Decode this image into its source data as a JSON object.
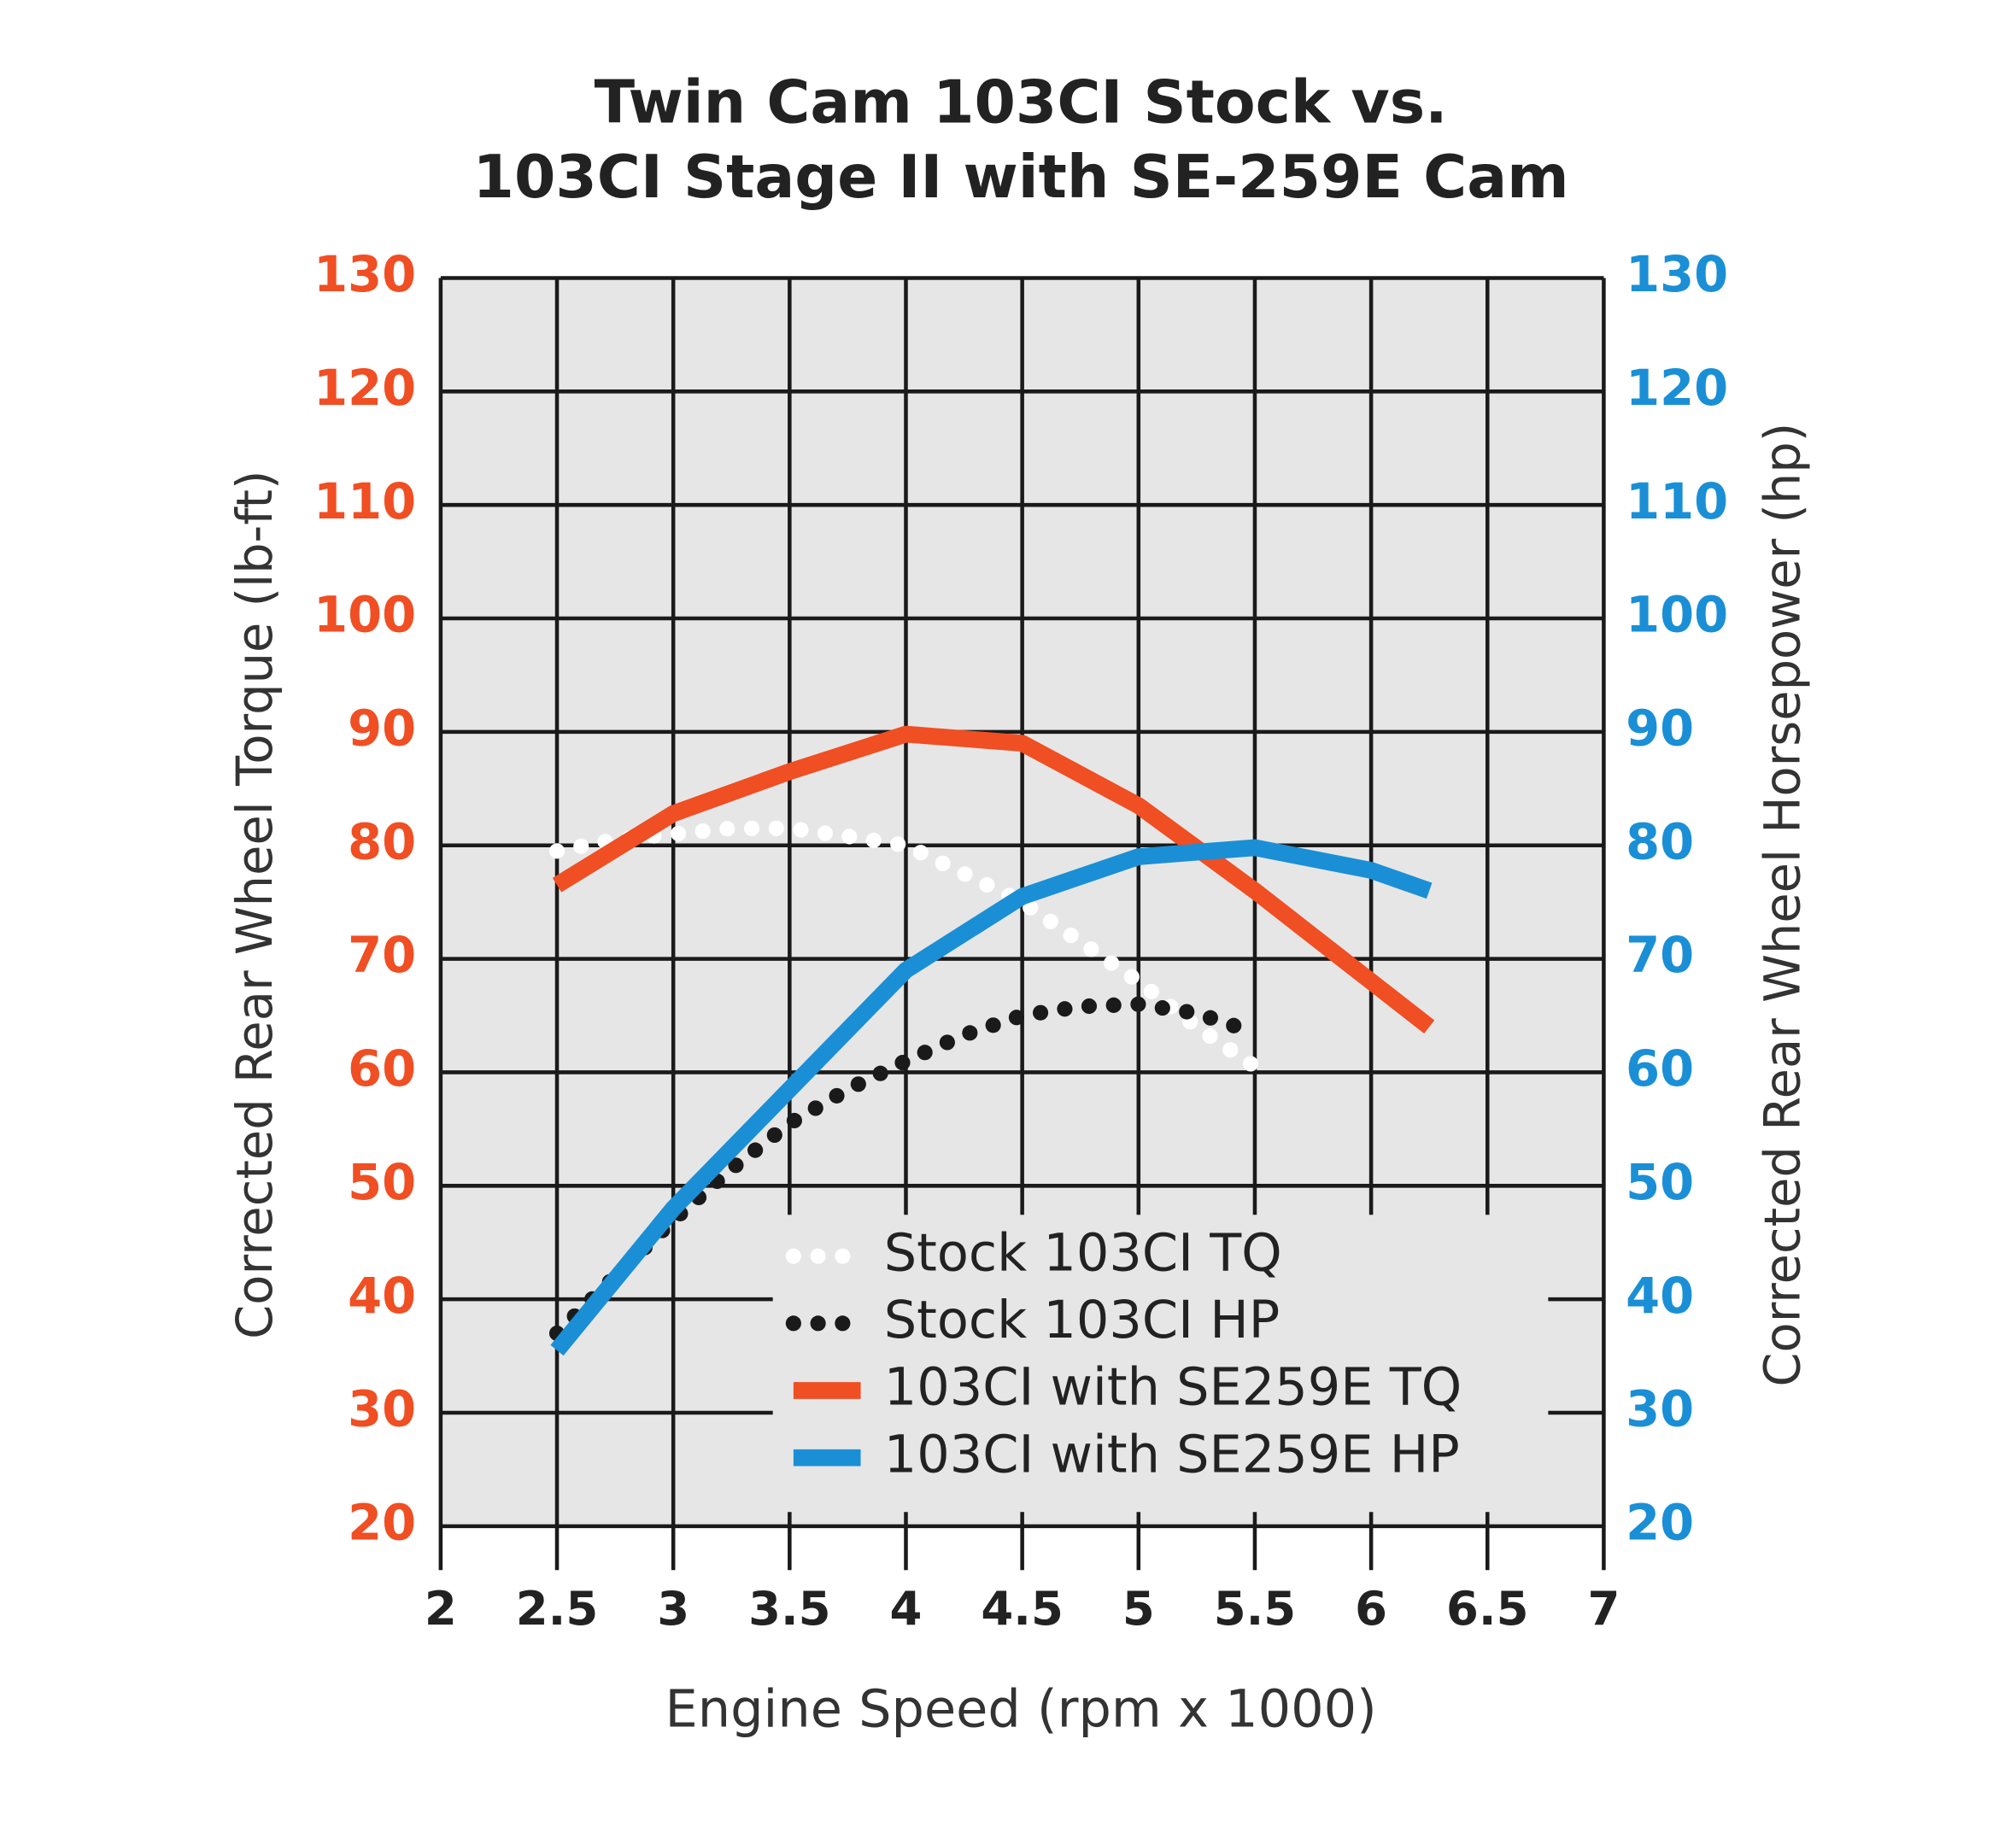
{
  "chart_data": {
    "type": "line",
    "title": "Twin Cam 103CI Stock vs.",
    "subtitle": "103CI Stage II with SE-259E Cam",
    "x_label": "Engine Speed (rpm x 1000)",
    "y_label": "Corrected Rear Wheel Torque (lb-ft)",
    "y2_label": "Corrected Rear Wheel Horsepower (hp)",
    "xlim": [
      2,
      7
    ],
    "xticks": [
      2,
      2.5,
      3,
      3.5,
      4,
      4.5,
      5,
      5.5,
      6,
      6.5,
      7
    ],
    "ylim": [
      20,
      130
    ],
    "yticks": [
      20,
      30,
      40,
      50,
      60,
      70,
      80,
      90,
      100,
      110,
      120,
      130
    ],
    "y2lim": [
      20,
      130
    ],
    "y2ticks": [
      20,
      30,
      40,
      50,
      60,
      70,
      80,
      90,
      100,
      110,
      120,
      130
    ],
    "y_color": "#f04e23",
    "y2_color": "#1a8fd6",
    "grid": true,
    "legend": "lower right",
    "series": [
      {
        "name": "Stock 103CI TQ",
        "color": "#ffffff",
        "style": "dotted",
        "x": [
          2.5,
          2.75,
          3,
          3.25,
          3.5,
          3.75,
          4,
          4.25,
          4.5,
          4.75,
          5,
          5.25,
          5.5
        ],
        "values": [
          79.5,
          80.5,
          81,
          81.5,
          81.5,
          80.8,
          80,
          77.5,
          75,
          71.5,
          68,
          64,
          60.5
        ]
      },
      {
        "name": "Stock 103CI HP",
        "color": "#1a1a1a",
        "style": "dotted",
        "axis": "y2",
        "x": [
          2.5,
          2.75,
          3,
          3.25,
          3.5,
          3.75,
          4,
          4.25,
          4.5,
          4.75,
          5,
          5.25,
          5.5
        ],
        "values": [
          37,
          42,
          47,
          51.5,
          55.5,
          58.5,
          61,
          63.3,
          65,
          65.8,
          66,
          65.2,
          63.5
        ]
      },
      {
        "name": "103CI with SE259E TQ",
        "color": "#f04e23",
        "style": "solid",
        "x": [
          2.5,
          3,
          3.5,
          4,
          4.5,
          5,
          5.5,
          6,
          6.25
        ],
        "values": [
          76.5,
          82.8,
          86.5,
          89.8,
          89,
          83.5,
          76,
          68,
          64
        ]
      },
      {
        "name": "103CI with SE259E HP",
        "color": "#1a8fd6",
        "style": "solid",
        "axis": "y2",
        "x": [
          2.5,
          3,
          3.5,
          4,
          4.5,
          5,
          5.5,
          6,
          6.25
        ],
        "values": [
          35.5,
          48,
          58.5,
          69,
          75.5,
          79,
          79.8,
          77.8,
          76
        ]
      }
    ]
  }
}
